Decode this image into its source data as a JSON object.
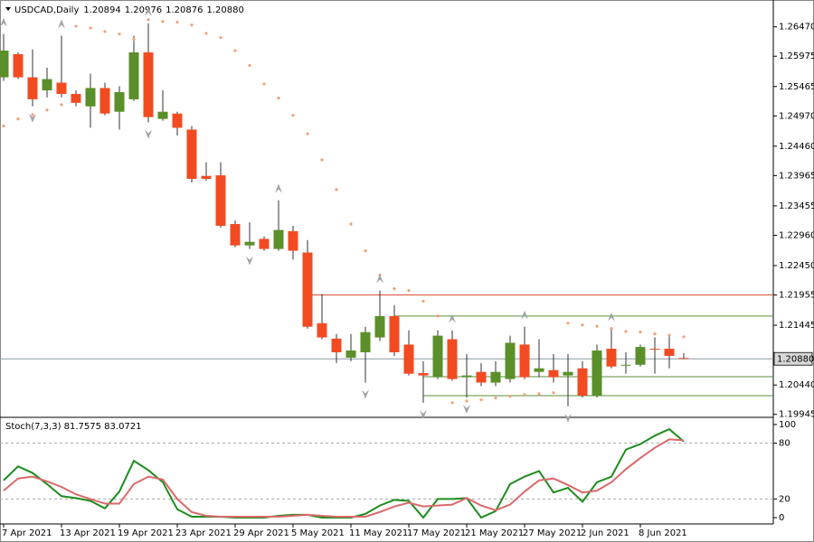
{
  "header": {
    "symbol": "USDCAD,Daily",
    "open": "1.20894",
    "high": "1.20976",
    "low": "1.20876",
    "close": "1.20880"
  },
  "chart_data": [
    {
      "type": "candlestick",
      "categories": [
        "7 Apr 2021",
        null,
        null,
        null,
        "13 Apr 2021",
        null,
        null,
        null,
        "19 Apr 2021",
        null,
        null,
        null,
        "23 Apr 2021",
        null,
        null,
        null,
        "29 Apr 2021",
        null,
        null,
        null,
        "5 May 2021",
        null,
        null,
        null,
        "11 May 2021",
        null,
        null,
        null,
        "17 May 2021",
        null,
        null,
        null,
        "21 May 2021",
        null,
        null,
        null,
        "27 May 2021",
        null,
        null,
        null,
        "2 Jun 2021",
        null,
        null,
        null,
        "8 Jun 2021",
        null,
        null,
        null
      ],
      "open": [
        1.2562,
        1.2601,
        1.2562,
        1.254,
        1.2553,
        1.2534,
        1.2513,
        1.2544,
        1.2504,
        1.2525,
        1.2604,
        1.2492,
        1.2501,
        1.2474,
        1.2396,
        1.2397,
        1.2315,
        1.2279,
        1.229,
        1.2273,
        1.2303,
        1.2267,
        1.2148,
        1.2122,
        1.209,
        1.2099,
        1.2124,
        1.216,
        1.2112,
        1.2064,
        1.2057,
        1.2121,
        1.2057,
        1.2066,
        1.2048,
        1.2054,
        1.2112,
        1.2066,
        1.2069,
        1.206,
        1.2072,
        1.2026,
        1.2105,
        1.2077,
        1.2078,
        1.2105,
        1.2105,
        1.20894
      ],
      "high": [
        1.2635,
        1.2604,
        1.2609,
        1.2578,
        1.2632,
        1.254,
        1.2568,
        1.2553,
        1.2547,
        1.2632,
        1.2653,
        1.254,
        1.2504,
        1.248,
        1.2419,
        1.2419,
        1.2321,
        1.2318,
        1.2294,
        1.2355,
        1.2312,
        1.2288,
        1.2197,
        1.213,
        1.213,
        1.2142,
        1.2203,
        1.2178,
        1.2136,
        1.2084,
        1.2136,
        1.2136,
        1.2096,
        1.2081,
        1.2084,
        1.2127,
        1.2142,
        1.2121,
        1.2096,
        1.2096,
        1.2084,
        1.2112,
        1.2139,
        1.2099,
        1.2112,
        1.2124,
        1.213,
        1.20976
      ],
      "low": [
        1.2556,
        1.2559,
        1.2513,
        1.2528,
        1.2528,
        1.2513,
        1.2477,
        1.2498,
        1.2474,
        1.2522,
        1.2486,
        1.2489,
        1.2464,
        1.2385,
        1.2388,
        1.2309,
        1.2276,
        1.2273,
        1.227,
        1.227,
        1.2255,
        1.2139,
        1.2121,
        1.2081,
        1.2084,
        1.2048,
        1.2118,
        1.2093,
        1.206,
        1.2014,
        1.2054,
        1.2051,
        1.2023,
        1.2042,
        1.2042,
        1.2048,
        1.2054,
        1.2057,
        1.2048,
        1.2008,
        1.2023,
        1.2023,
        1.2072,
        1.2063,
        1.2075,
        1.2063,
        1.2072,
        1.20876
      ],
      "close": [
        1.2607,
        1.2562,
        1.2525,
        1.2559,
        1.2534,
        1.2519,
        1.2544,
        1.2501,
        1.2537,
        1.2604,
        1.2495,
        1.2504,
        1.2477,
        1.2391,
        1.2391,
        1.2312,
        1.2279,
        1.2285,
        1.2273,
        1.2305,
        1.227,
        1.2142,
        1.2124,
        1.2099,
        1.2102,
        1.2133,
        1.216,
        1.2099,
        1.2063,
        1.206,
        1.2127,
        1.2054,
        1.206,
        1.2048,
        1.2066,
        1.2115,
        1.2057,
        1.2072,
        1.2057,
        1.2066,
        1.2026,
        1.2102,
        1.2075,
        1.2078,
        1.2108,
        1.2104,
        1.2093,
        1.2088
      ],
      "up_color": "#5a8f29",
      "down_color": "#f24b22",
      "ylim": [
        1.1991,
        1.268
      ],
      "yticks": [
        {
          "value": 1.2647,
          "label": "1.26470"
        },
        1.25975,
        1.25465,
        {
          "value": 1.2497,
          "label": "1.24970"
        },
        {
          "value": 1.2446,
          "label": "1.24460"
        },
        1.23965,
        1.23455,
        {
          "value": 1.2296,
          "label": "1.22960"
        },
        {
          "value": 1.2245,
          "label": "1.22450"
        },
        1.21955,
        1.21445,
        {
          "value": 1.2044,
          "label": "1.20440"
        },
        1.19945
      ],
      "sar": {
        "color": "#f4a07a",
        "values": [
          1.248,
          1.2492,
          1.2499,
          1.2507,
          1.2516,
          1.2648,
          1.2645,
          1.2639,
          1.2635,
          1.2626,
          1.2659,
          1.2656,
          1.2655,
          1.265,
          1.2636,
          1.2629,
          1.2607,
          1.2582,
          1.2551,
          1.2527,
          1.2498,
          1.2467,
          1.2423,
          1.2373,
          1.2315,
          1.227,
          1.2229,
          1.2206,
          1.2203,
          1.2185,
          1.216,
          1.2014,
          1.2017,
          1.2019,
          1.2022,
          1.2025,
          1.2028,
          1.2029,
          1.2031,
          1.2148,
          1.2145,
          1.2143,
          1.2139,
          1.2134,
          1.2133,
          1.213,
          1.2128,
          1.2125
        ]
      },
      "fractals_up": [
        1.2635,
        null,
        null,
        null,
        1.2632,
        null,
        null,
        null,
        null,
        null,
        1.2653,
        null,
        null,
        null,
        null,
        null,
        null,
        null,
        null,
        1.2355,
        null,
        null,
        null,
        null,
        null,
        null,
        1.2203,
        null,
        null,
        null,
        null,
        1.2136,
        null,
        null,
        null,
        null,
        1.2142,
        null,
        null,
        null,
        null,
        null,
        1.2139,
        null,
        null,
        null,
        null,
        null
      ],
      "fractals_down": [
        null,
        null,
        1.2513,
        null,
        null,
        null,
        null,
        null,
        null,
        null,
        1.2486,
        null,
        null,
        null,
        null,
        null,
        null,
        1.2273,
        null,
        null,
        null,
        null,
        null,
        null,
        null,
        1.2048,
        null,
        null,
        null,
        1.2014,
        null,
        null,
        1.2023,
        null,
        null,
        null,
        null,
        null,
        null,
        1.2008,
        null,
        null,
        null,
        null,
        null,
        null,
        null,
        null
      ],
      "fractal_color": "#a0a4a8",
      "levels": [
        {
          "value": 1.21955,
          "color": "#d9503a",
          "from": 21
        },
        {
          "value": 1.216,
          "color": "#5a8f3a",
          "from": 27
        },
        {
          "value": 1.2058,
          "color": "#5a8f3a",
          "from": 29
        },
        {
          "value": 1.2026,
          "color": "#5a8f3a",
          "from": 29
        }
      ],
      "price_line": {
        "value": 1.2088,
        "color": "#8a9aa0"
      }
    },
    {
      "type": "line",
      "title": "Stoch(7,3,3) 81.7575 83.0721",
      "series": [
        {
          "color": "#1e8c1e",
          "values": [
            40,
            55,
            48,
            36,
            23,
            21,
            18,
            10,
            28,
            61,
            51,
            38,
            9,
            1,
            1,
            1,
            0,
            0,
            0,
            2,
            3,
            3,
            0,
            0,
            0,
            4,
            13,
            19,
            18,
            0,
            20,
            20,
            21,
            0,
            7,
            36,
            44,
            50,
            27,
            32,
            17,
            38,
            44,
            73,
            79,
            88,
            95,
            81.7575
          ]
        },
        {
          "color": "#d9696a",
          "values": [
            29,
            42,
            44,
            39,
            33,
            25,
            20,
            15,
            15,
            36,
            44,
            41,
            20,
            6,
            2,
            1,
            1,
            1,
            1,
            1,
            2,
            3,
            2,
            1,
            1,
            1,
            6,
            12,
            16,
            12,
            13,
            14,
            21,
            13,
            8,
            14,
            28,
            40,
            42,
            35,
            27,
            29,
            38,
            52,
            64,
            75,
            84,
            83.0721
          ]
        }
      ],
      "ylim": [
        -5.8,
        106.7
      ],
      "yticks": [
        100,
        80,
        20,
        0
      ],
      "dashed_levels": [
        80,
        20
      ]
    }
  ]
}
